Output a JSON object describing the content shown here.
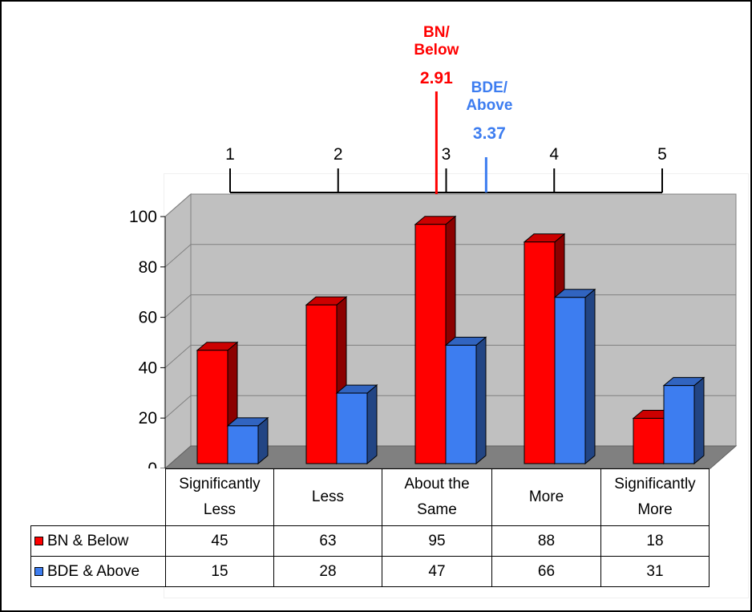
{
  "chart_data": {
    "type": "bar",
    "title": "",
    "xlabel": "",
    "ylabel": "",
    "ylim": [
      0,
      100
    ],
    "yticks": [
      "0",
      "20",
      "40",
      "60",
      "80",
      "100"
    ],
    "categories": [
      "Significantly Less",
      "Less",
      "About the Same",
      "More",
      "Significantly More"
    ],
    "series": [
      {
        "name": "BN & Below",
        "values": [
          45,
          63,
          95,
          88,
          18
        ],
        "color": "#ff0000"
      },
      {
        "name": "BDE & Above",
        "values": [
          15,
          28,
          47,
          66,
          31
        ],
        "color": "#3d7df0"
      }
    ],
    "scale": {
      "ticks": [
        "1",
        "2",
        "3",
        "4",
        "5"
      ],
      "range": [
        1,
        5
      ]
    },
    "markers": [
      {
        "label_line1": "BN/",
        "label_line2": "Below",
        "value": 2.91,
        "value_text": "2.91",
        "color": "#ff0000"
      },
      {
        "label_line1": "BDE/",
        "label_line2": "Above",
        "value": 3.37,
        "value_text": "3.37",
        "color": "#3d7df0"
      }
    ],
    "data_table": true,
    "grid": true,
    "legend": "data-table"
  }
}
